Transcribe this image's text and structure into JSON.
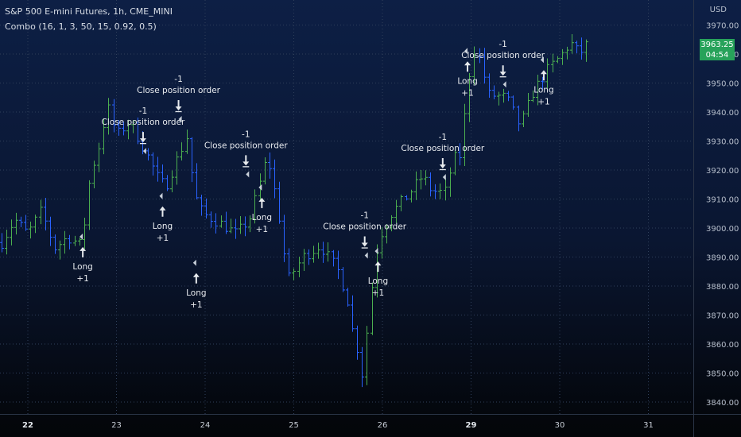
{
  "header": {
    "title": "S&P 500 E-mini Futures, 1h, CME_MINI",
    "indicator": "Combo (16, 1, 3, 50, 15, 0.92, 0.5)",
    "currency": "USD"
  },
  "last_price": {
    "value": "3963.25",
    "countdown": "04:54"
  },
  "colors": {
    "background_top": "#0d1f45",
    "background_bottom": "#030508",
    "up_bar": "#4caf50",
    "down_bar": "#2962ff",
    "grid": "#2f3f5a",
    "price_badge": "#27a25a",
    "signal_text": "#e7eaee"
  },
  "chart_data": {
    "type": "ohlc",
    "title": "S&P 500 E-mini Futures, 1h, CME_MINI",
    "ylim": [
      3836,
      3974
    ],
    "y_ticks": [
      "3970.00",
      "3960.00",
      "3950.00",
      "3940.00",
      "3930.00",
      "3920.00",
      "3910.00",
      "3900.00",
      "3890.00",
      "3880.00",
      "3870.00",
      "3860.00",
      "3850.00",
      "3840.00"
    ],
    "y_tick_values": [
      3970,
      3960,
      3950,
      3940,
      3930,
      3920,
      3910,
      3900,
      3890,
      3880,
      3870,
      3860,
      3850,
      3840
    ],
    "x_ticks": [
      {
        "label": "22",
        "bold": true
      },
      {
        "label": "23",
        "bold": false
      },
      {
        "label": "24",
        "bold": false
      },
      {
        "label": "25",
        "bold": false
      },
      {
        "label": "26",
        "bold": false
      },
      {
        "label": "29",
        "bold": true
      },
      {
        "label": "30",
        "bold": false
      },
      {
        "label": "31",
        "bold": false
      }
    ],
    "grid": true,
    "close_path": [
      {
        "day": 21.7,
        "close": 3895
      },
      {
        "day": 21.85,
        "close": 3903
      },
      {
        "day": 22.0,
        "close": 3898
      },
      {
        "day": 22.15,
        "close": 3906
      },
      {
        "day": 22.3,
        "close": 3893
      },
      {
        "day": 22.45,
        "close": 3897
      },
      {
        "day": 22.6,
        "close": 3894
      },
      {
        "day": 22.65,
        "close": 3905
      },
      {
        "day": 22.7,
        "close": 3918
      },
      {
        "day": 22.8,
        "close": 3928
      },
      {
        "day": 22.9,
        "close": 3942
      },
      {
        "day": 23.0,
        "close": 3932
      },
      {
        "day": 23.15,
        "close": 3937
      },
      {
        "day": 23.3,
        "close": 3928
      },
      {
        "day": 23.45,
        "close": 3918
      },
      {
        "day": 23.55,
        "close": 3914
      },
      {
        "day": 23.7,
        "close": 3925
      },
      {
        "day": 23.8,
        "close": 3932
      },
      {
        "day": 23.87,
        "close": 3912
      },
      {
        "day": 23.97,
        "close": 3905
      },
      {
        "day": 24.15,
        "close": 3902
      },
      {
        "day": 24.35,
        "close": 3898
      },
      {
        "day": 24.5,
        "close": 3903
      },
      {
        "day": 24.6,
        "close": 3914
      },
      {
        "day": 24.7,
        "close": 3925
      },
      {
        "day": 24.82,
        "close": 3907
      },
      {
        "day": 24.93,
        "close": 3882
      },
      {
        "day": 25.1,
        "close": 3890
      },
      {
        "day": 25.3,
        "close": 3894
      },
      {
        "day": 25.5,
        "close": 3885
      },
      {
        "day": 25.6,
        "close": 3876
      },
      {
        "day": 25.65,
        "close": 3866
      },
      {
        "day": 25.72,
        "close": 3858
      },
      {
        "day": 25.78,
        "close": 3848
      },
      {
        "day": 25.85,
        "close": 3873
      },
      {
        "day": 25.95,
        "close": 3896
      },
      {
        "day": 26.1,
        "close": 3905
      },
      {
        "day": 26.3,
        "close": 3912
      },
      {
        "day": 26.45,
        "close": 3918
      },
      {
        "day": 26.55,
        "close": 3913
      },
      {
        "day": 26.7,
        "close": 3912
      },
      {
        "day": 26.8,
        "close": 3924
      },
      {
        "day": 26.88,
        "close": 3925
      },
      {
        "day": 26.97,
        "close": 3952
      },
      {
        "day": 27.05,
        "close": 3963
      },
      {
        "day": 27.2,
        "close": 3946
      },
      {
        "day": 27.4,
        "close": 3945
      },
      {
        "day": 27.55,
        "close": 3935
      },
      {
        "day": 27.7,
        "close": 3947
      },
      {
        "day": 27.87,
        "close": 3955
      },
      {
        "day": 28.0,
        "close": 3959
      },
      {
        "day": 28.12,
        "close": 3964
      },
      {
        "day": 28.22,
        "close": 3960
      },
      {
        "day": 28.3,
        "close": 3963
      }
    ],
    "annotations": [
      {
        "type": "long",
        "day": 22.62,
        "price": 3894,
        "label_top": "Long",
        "label_bottom": "+1"
      },
      {
        "type": "close",
        "day": 23.3,
        "price": 3929,
        "label_top": "-1",
        "label_bottom": "Close position order"
      },
      {
        "type": "close",
        "day": 23.7,
        "price": 3940,
        "label_top": "-1",
        "label_bottom": "Close position order"
      },
      {
        "type": "long",
        "day": 23.52,
        "price": 3908,
        "label_top": "Long",
        "label_bottom": "+1"
      },
      {
        "type": "long",
        "day": 23.9,
        "price": 3885,
        "label_top": "Long",
        "label_bottom": "+1"
      },
      {
        "type": "close",
        "day": 24.46,
        "price": 3921,
        "label_top": "-1",
        "label_bottom": "Close position order"
      },
      {
        "type": "long",
        "day": 24.64,
        "price": 3911,
        "label_top": "Long",
        "label_bottom": "+1"
      },
      {
        "type": "close",
        "day": 25.8,
        "price": 3893,
        "label_top": "-1",
        "label_bottom": "Close position order"
      },
      {
        "type": "long",
        "day": 25.95,
        "price": 3889,
        "label_top": "Long",
        "label_bottom": "+1"
      },
      {
        "type": "close",
        "day": 26.68,
        "price": 3920,
        "label_top": "-1",
        "label_bottom": "Close position order"
      },
      {
        "type": "long",
        "day": 26.96,
        "price": 3958,
        "label_top": "Long",
        "label_bottom": "+1"
      },
      {
        "type": "close",
        "day": 27.36,
        "price": 3952,
        "label_top": "-1",
        "label_bottom": "Close position order"
      },
      {
        "type": "long",
        "day": 27.82,
        "price": 3955,
        "label_top": "Long",
        "label_bottom": "+1"
      }
    ]
  }
}
